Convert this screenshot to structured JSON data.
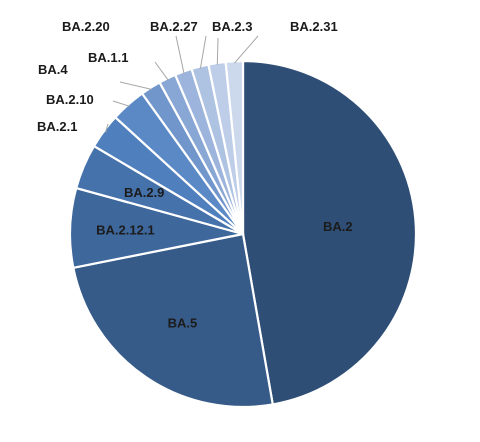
{
  "chart_data": {
    "type": "pie",
    "title": "",
    "start_angle_deg": 0,
    "direction": "clockwise",
    "legend": "none",
    "slices": [
      {
        "label": "BA.2",
        "value": 47.2,
        "color": "#2f4e76"
      },
      {
        "label": "BA.5",
        "value": 24.6,
        "color": "#375b89"
      },
      {
        "label": "BA.2.12.1",
        "value": 7.4,
        "color": "#3e679b"
      },
      {
        "label": "BA.2.9",
        "value": 4.2,
        "color": "#4672ab"
      },
      {
        "label": "BA.2.1",
        "value": 3.3,
        "color": "#4f7fbd"
      },
      {
        "label": "BA.2.10",
        "value": 3.3,
        "color": "#5b89c6"
      },
      {
        "label": "BA.4",
        "value": 1.9,
        "color": "#7196cc"
      },
      {
        "label": "BA.1.1",
        "value": 1.6,
        "color": "#89a7d4"
      },
      {
        "label": "BA.2.20",
        "value": 1.6,
        "color": "#9db5dc"
      },
      {
        "label": "BA.2.27",
        "value": 1.6,
        "color": "#aec2e2"
      },
      {
        "label": "BA.2.3",
        "value": 1.6,
        "color": "#bfcee8"
      },
      {
        "label": "BA.2.31",
        "value": 1.6,
        "color": "#ccd8ec"
      }
    ]
  }
}
